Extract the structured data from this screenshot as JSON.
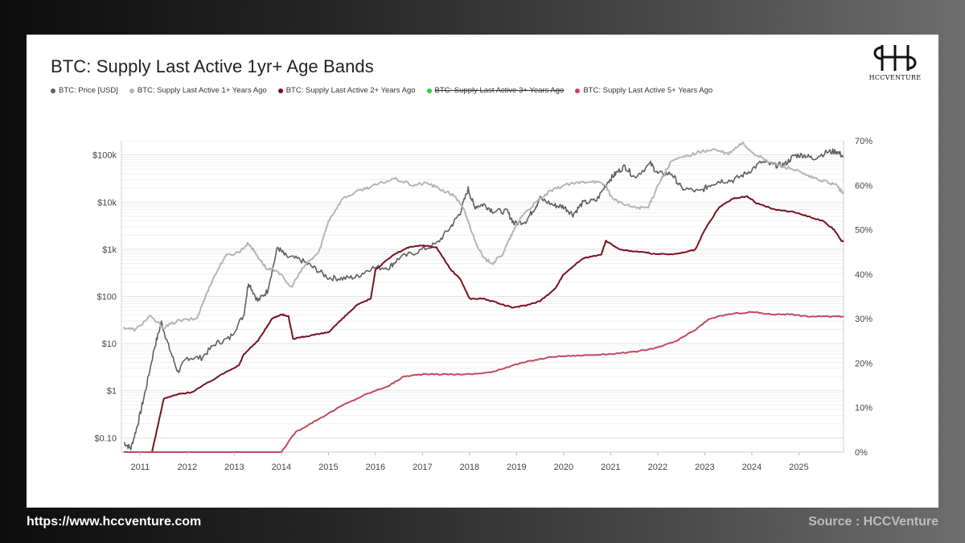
{
  "footer": {
    "url": "https://www.hccventure.com",
    "source": "Source : HCCVenture"
  },
  "brand": {
    "logo_text": "HCCVENTURE",
    "logo_glyph": "H-ligature-icon"
  },
  "chart_data": {
    "type": "line",
    "title": "BTC: Supply Last Active 1yr+ Age Bands",
    "legend_placement": "top-left",
    "grid": true,
    "x_axis": {
      "ticks": [
        "2011",
        "2012",
        "2013",
        "2014",
        "2015",
        "2016",
        "2017",
        "2018",
        "2019",
        "2020",
        "2021",
        "2022",
        "2023",
        "2024",
        "2025"
      ],
      "range": [
        2010.6,
        2025.95
      ]
    },
    "y_left": {
      "scale": "log",
      "range": [
        0.05,
        200000
      ],
      "ticks": [
        {
          "value": 100000,
          "label": "$100k"
        },
        {
          "value": 10000,
          "label": "$10k"
        },
        {
          "value": 1000,
          "label": "$1k"
        },
        {
          "value": 100,
          "label": "$100"
        },
        {
          "value": 10,
          "label": "$10"
        },
        {
          "value": 1,
          "label": "$1"
        },
        {
          "value": 0.1,
          "label": "$0.10"
        }
      ]
    },
    "y_right": {
      "scale": "linear",
      "range": [
        0,
        70
      ],
      "ticks": [
        {
          "value": 70,
          "label": "70%"
        },
        {
          "value": 60,
          "label": "60%"
        },
        {
          "value": 50,
          "label": "50%"
        },
        {
          "value": 40,
          "label": "40%"
        },
        {
          "value": 30,
          "label": "30%"
        },
        {
          "value": 20,
          "label": "20%"
        },
        {
          "value": 10,
          "label": "10%"
        },
        {
          "value": 0,
          "label": "0%"
        }
      ]
    },
    "series": [
      {
        "name": "BTC: Price [USD]",
        "color": "#5f5f5f",
        "axis": "left",
        "hidden": false,
        "points": [
          [
            2010.65,
            0.08
          ],
          [
            2010.8,
            0.06
          ],
          [
            2010.95,
            0.2
          ],
          [
            2011.1,
            0.9
          ],
          [
            2011.3,
            8
          ],
          [
            2011.45,
            28
          ],
          [
            2011.6,
            9
          ],
          [
            2011.8,
            2.5
          ],
          [
            2012.0,
            5
          ],
          [
            2012.3,
            5
          ],
          [
            2012.6,
            10
          ],
          [
            2012.9,
            13
          ],
          [
            2013.2,
            40
          ],
          [
            2013.3,
            200
          ],
          [
            2013.5,
            80
          ],
          [
            2013.7,
            130
          ],
          [
            2013.92,
            1100
          ],
          [
            2014.1,
            700
          ],
          [
            2014.4,
            600
          ],
          [
            2014.7,
            400
          ],
          [
            2015.0,
            250
          ],
          [
            2015.3,
            240
          ],
          [
            2015.6,
            260
          ],
          [
            2015.9,
            400
          ],
          [
            2016.3,
            420
          ],
          [
            2016.5,
            650
          ],
          [
            2016.9,
            900
          ],
          [
            2017.3,
            1300
          ],
          [
            2017.6,
            3000
          ],
          [
            2017.8,
            6000
          ],
          [
            2017.97,
            19000
          ],
          [
            2018.1,
            8000
          ],
          [
            2018.3,
            9000
          ],
          [
            2018.5,
            6500
          ],
          [
            2018.8,
            6300
          ],
          [
            2018.95,
            3500
          ],
          [
            2019.2,
            4000
          ],
          [
            2019.4,
            8000
          ],
          [
            2019.5,
            12000
          ],
          [
            2019.8,
            8500
          ],
          [
            2020.0,
            8000
          ],
          [
            2020.2,
            5500
          ],
          [
            2020.4,
            9500
          ],
          [
            2020.7,
            11000
          ],
          [
            2020.95,
            28000
          ],
          [
            2021.1,
            40000
          ],
          [
            2021.3,
            58000
          ],
          [
            2021.5,
            34000
          ],
          [
            2021.85,
            65000
          ],
          [
            2022.0,
            40000
          ],
          [
            2022.3,
            40000
          ],
          [
            2022.5,
            20000
          ],
          [
            2022.9,
            16500
          ],
          [
            2023.1,
            23000
          ],
          [
            2023.3,
            28000
          ],
          [
            2023.6,
            29000
          ],
          [
            2023.9,
            42000
          ],
          [
            2024.2,
            70000
          ],
          [
            2024.5,
            60000
          ],
          [
            2024.7,
            63000
          ],
          [
            2024.9,
            97000
          ],
          [
            2025.1,
            100000
          ],
          [
            2025.3,
            85000
          ],
          [
            2025.6,
            115000
          ],
          [
            2025.8,
            120000
          ],
          [
            2025.95,
            92000
          ]
        ]
      },
      {
        "name": "BTC: Supply Last Active 1+ Years Ago",
        "color": "#b5b5b5",
        "axis": "right",
        "hidden": false,
        "points": [
          [
            2010.65,
            28
          ],
          [
            2010.9,
            27.5
          ],
          [
            2011.2,
            30.5
          ],
          [
            2011.5,
            28
          ],
          [
            2011.8,
            29.5
          ],
          [
            2012.2,
            30
          ],
          [
            2012.5,
            38
          ],
          [
            2012.8,
            44
          ],
          [
            2013.1,
            45
          ],
          [
            2013.3,
            47
          ],
          [
            2013.5,
            44
          ],
          [
            2013.7,
            41
          ],
          [
            2013.9,
            41
          ],
          [
            2014.2,
            37
          ],
          [
            2014.5,
            42
          ],
          [
            2014.8,
            45
          ],
          [
            2015.0,
            52
          ],
          [
            2015.3,
            57
          ],
          [
            2015.7,
            59
          ],
          [
            2016.0,
            60
          ],
          [
            2016.4,
            61.5
          ],
          [
            2016.8,
            60
          ],
          [
            2017.1,
            60.5
          ],
          [
            2017.4,
            59
          ],
          [
            2017.7,
            57.5
          ],
          [
            2017.9,
            54
          ],
          [
            2018.1,
            48
          ],
          [
            2018.3,
            43.5
          ],
          [
            2018.5,
            42.5
          ],
          [
            2018.7,
            44.5
          ],
          [
            2018.9,
            49
          ],
          [
            2019.1,
            53
          ],
          [
            2019.4,
            56
          ],
          [
            2019.7,
            58.5
          ],
          [
            2020.0,
            60
          ],
          [
            2020.3,
            60.5
          ],
          [
            2020.6,
            61
          ],
          [
            2020.9,
            60
          ],
          [
            2021.0,
            57.5
          ],
          [
            2021.2,
            56
          ],
          [
            2021.5,
            55
          ],
          [
            2021.8,
            55
          ],
          [
            2022.0,
            60
          ],
          [
            2022.3,
            65.5
          ],
          [
            2022.6,
            66.5
          ],
          [
            2022.9,
            67.5
          ],
          [
            2023.2,
            68
          ],
          [
            2023.5,
            67
          ],
          [
            2023.8,
            69.5
          ],
          [
            2024.0,
            67.5
          ],
          [
            2024.3,
            65.5
          ],
          [
            2024.6,
            64.5
          ],
          [
            2024.9,
            63.5
          ],
          [
            2025.2,
            62
          ],
          [
            2025.5,
            61
          ],
          [
            2025.8,
            60
          ],
          [
            2025.95,
            58
          ]
        ]
      },
      {
        "name": "BTC: Supply Last Active 2+ Years Ago",
        "color": "#7a1020",
        "axis": "right",
        "hidden": false,
        "points": [
          [
            2010.65,
            0
          ],
          [
            2011.25,
            0
          ],
          [
            2011.5,
            12
          ],
          [
            2011.8,
            13
          ],
          [
            2012.1,
            13.5
          ],
          [
            2012.5,
            16
          ],
          [
            2012.9,
            18.5
          ],
          [
            2013.1,
            19.5
          ],
          [
            2013.2,
            22
          ],
          [
            2013.5,
            25
          ],
          [
            2013.8,
            30
          ],
          [
            2014.0,
            31
          ],
          [
            2014.15,
            30.5
          ],
          [
            2014.25,
            25.5
          ],
          [
            2014.5,
            26
          ],
          [
            2014.8,
            26.5
          ],
          [
            2015.0,
            27
          ],
          [
            2015.3,
            30
          ],
          [
            2015.6,
            33
          ],
          [
            2015.9,
            34.5
          ],
          [
            2016.0,
            41
          ],
          [
            2016.4,
            44.5
          ],
          [
            2016.7,
            46
          ],
          [
            2017.0,
            46.5
          ],
          [
            2017.3,
            46
          ],
          [
            2017.6,
            41
          ],
          [
            2017.8,
            39
          ],
          [
            2018.0,
            34.5
          ],
          [
            2018.3,
            34.5
          ],
          [
            2018.6,
            33.5
          ],
          [
            2018.9,
            32.5
          ],
          [
            2019.2,
            33
          ],
          [
            2019.5,
            34
          ],
          [
            2019.8,
            36.5
          ],
          [
            2020.0,
            40
          ],
          [
            2020.4,
            43.5
          ],
          [
            2020.8,
            44.5
          ],
          [
            2020.9,
            47.5
          ],
          [
            2021.2,
            45.5
          ],
          [
            2021.6,
            45
          ],
          [
            2022.0,
            44.5
          ],
          [
            2022.4,
            44.5
          ],
          [
            2022.8,
            45.5
          ],
          [
            2023.0,
            50
          ],
          [
            2023.3,
            55
          ],
          [
            2023.6,
            57
          ],
          [
            2023.9,
            57.5
          ],
          [
            2024.1,
            56
          ],
          [
            2024.5,
            54.5
          ],
          [
            2024.9,
            54
          ],
          [
            2025.2,
            53
          ],
          [
            2025.5,
            52
          ],
          [
            2025.75,
            50
          ],
          [
            2025.9,
            47.5
          ],
          [
            2025.95,
            47.5
          ]
        ]
      },
      {
        "name": "BTC: Supply Last Active 3+ Years Ago",
        "color": "#2fcf3a",
        "axis": "right",
        "hidden": true,
        "points": []
      },
      {
        "name": "BTC: Supply Last Active 5+ Years Ago",
        "color": "#c24a5a",
        "axis": "right",
        "hidden": false,
        "points": [
          [
            2010.65,
            0
          ],
          [
            2014.0,
            0
          ],
          [
            2014.3,
            4.5
          ],
          [
            2014.8,
            7.5
          ],
          [
            2015.3,
            10.5
          ],
          [
            2015.8,
            13
          ],
          [
            2016.3,
            15
          ],
          [
            2016.6,
            17
          ],
          [
            2017.0,
            17.5
          ],
          [
            2017.5,
            17.5
          ],
          [
            2018.0,
            17.5
          ],
          [
            2018.5,
            18
          ],
          [
            2018.9,
            19.5
          ],
          [
            2019.3,
            20.5
          ],
          [
            2019.8,
            21.5
          ],
          [
            2020.3,
            21.7
          ],
          [
            2020.9,
            22
          ],
          [
            2021.5,
            22.5
          ],
          [
            2022.0,
            23.5
          ],
          [
            2022.4,
            25
          ],
          [
            2022.8,
            27.5
          ],
          [
            2023.1,
            30
          ],
          [
            2023.5,
            31
          ],
          [
            2024.0,
            31.5
          ],
          [
            2024.4,
            31
          ],
          [
            2024.8,
            31
          ],
          [
            2025.2,
            30.5
          ],
          [
            2025.6,
            30.5
          ],
          [
            2025.95,
            30.5
          ]
        ]
      }
    ]
  }
}
